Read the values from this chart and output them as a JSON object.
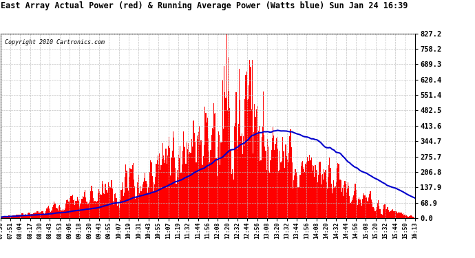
{
  "title": "East Array Actual Power (red) & Running Average Power (Watts blue) Sun Jan 24 16:39",
  "copyright": "Copyright 2010 Cartronics.com",
  "yticks": [
    0.0,
    68.9,
    137.9,
    206.8,
    275.7,
    344.7,
    413.6,
    482.5,
    551.4,
    620.4,
    689.3,
    758.2,
    827.2
  ],
  "ymax": 827.2,
  "ymin": 0.0,
  "bg_color": "#ffffff",
  "grid_color": "#bbbbbb",
  "bar_color": "#ff0000",
  "line_color": "#0000cc",
  "x_labels": [
    "07:36",
    "07:51",
    "08:04",
    "08:17",
    "08:30",
    "08:43",
    "08:53",
    "09:06",
    "09:18",
    "09:30",
    "09:43",
    "09:55",
    "10:07",
    "10:19",
    "10:31",
    "10:43",
    "10:55",
    "11:07",
    "11:19",
    "11:32",
    "11:44",
    "11:56",
    "12:08",
    "12:20",
    "12:32",
    "12:44",
    "12:56",
    "13:08",
    "13:20",
    "13:32",
    "13:44",
    "13:56",
    "14:08",
    "14:20",
    "14:32",
    "14:44",
    "14:56",
    "15:08",
    "15:20",
    "15:32",
    "15:44",
    "15:50",
    "16:13"
  ]
}
